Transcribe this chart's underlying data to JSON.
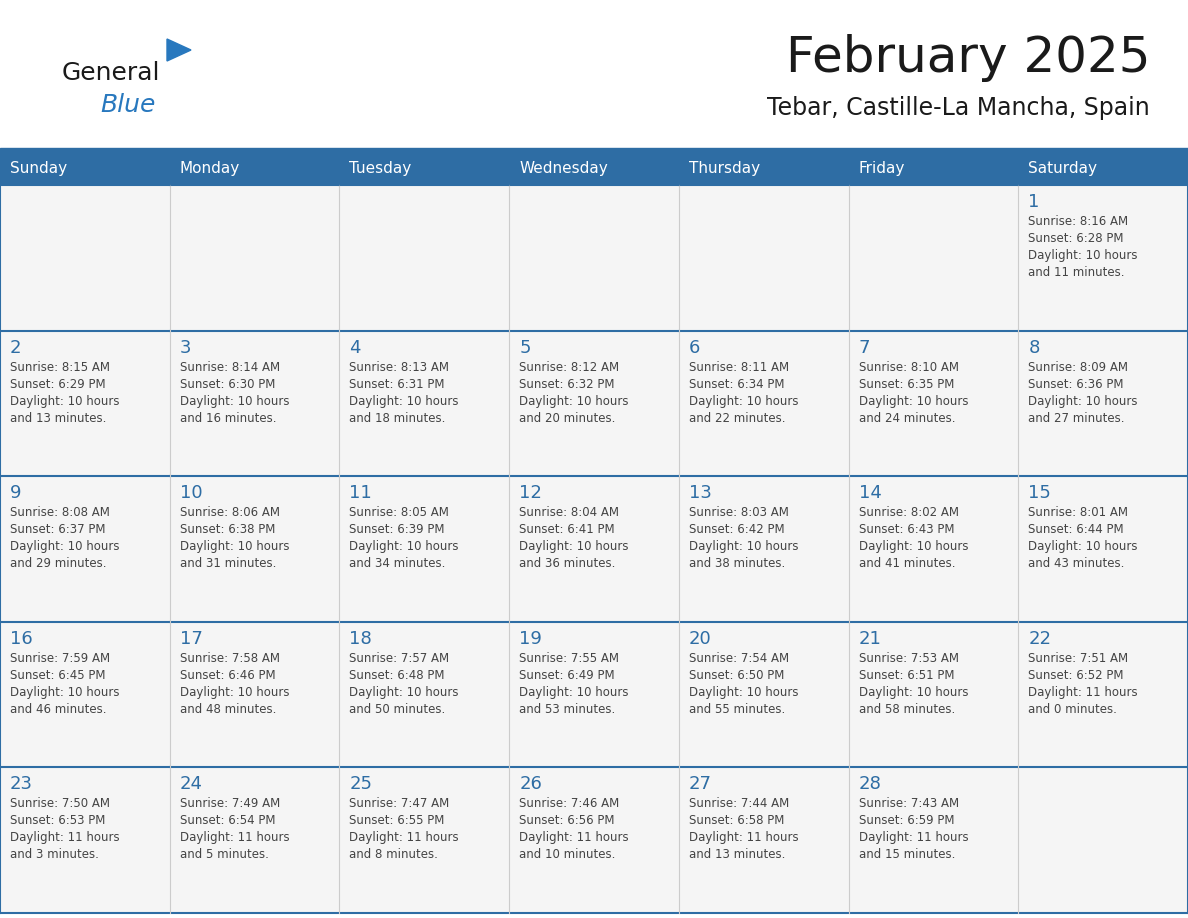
{
  "title": "February 2025",
  "subtitle": "Tebar, Castille-La Mancha, Spain",
  "days_of_week": [
    "Sunday",
    "Monday",
    "Tuesday",
    "Wednesday",
    "Thursday",
    "Friday",
    "Saturday"
  ],
  "header_bg": "#2E6DA4",
  "header_text": "#FFFFFF",
  "cell_bg": "#F5F5F5",
  "line_color": "#2E6DA4",
  "day_number_color": "#2E6DA4",
  "cell_text_color": "#444444",
  "title_color": "#1a1a1a",
  "logo_black": "#1a1a1a",
  "logo_blue": "#2878BE",
  "calendar": [
    [
      null,
      null,
      null,
      null,
      null,
      null,
      {
        "day": "1",
        "sunrise": "8:16 AM",
        "sunset": "6:28 PM",
        "daylight": "10 hours",
        "daylight2": "and 11 minutes."
      }
    ],
    [
      {
        "day": "2",
        "sunrise": "8:15 AM",
        "sunset": "6:29 PM",
        "daylight": "10 hours",
        "daylight2": "and 13 minutes."
      },
      {
        "day": "3",
        "sunrise": "8:14 AM",
        "sunset": "6:30 PM",
        "daylight": "10 hours",
        "daylight2": "and 16 minutes."
      },
      {
        "day": "4",
        "sunrise": "8:13 AM",
        "sunset": "6:31 PM",
        "daylight": "10 hours",
        "daylight2": "and 18 minutes."
      },
      {
        "day": "5",
        "sunrise": "8:12 AM",
        "sunset": "6:32 PM",
        "daylight": "10 hours",
        "daylight2": "and 20 minutes."
      },
      {
        "day": "6",
        "sunrise": "8:11 AM",
        "sunset": "6:34 PM",
        "daylight": "10 hours",
        "daylight2": "and 22 minutes."
      },
      {
        "day": "7",
        "sunrise": "8:10 AM",
        "sunset": "6:35 PM",
        "daylight": "10 hours",
        "daylight2": "and 24 minutes."
      },
      {
        "day": "8",
        "sunrise": "8:09 AM",
        "sunset": "6:36 PM",
        "daylight": "10 hours",
        "daylight2": "and 27 minutes."
      }
    ],
    [
      {
        "day": "9",
        "sunrise": "8:08 AM",
        "sunset": "6:37 PM",
        "daylight": "10 hours",
        "daylight2": "and 29 minutes."
      },
      {
        "day": "10",
        "sunrise": "8:06 AM",
        "sunset": "6:38 PM",
        "daylight": "10 hours",
        "daylight2": "and 31 minutes."
      },
      {
        "day": "11",
        "sunrise": "8:05 AM",
        "sunset": "6:39 PM",
        "daylight": "10 hours",
        "daylight2": "and 34 minutes."
      },
      {
        "day": "12",
        "sunrise": "8:04 AM",
        "sunset": "6:41 PM",
        "daylight": "10 hours",
        "daylight2": "and 36 minutes."
      },
      {
        "day": "13",
        "sunrise": "8:03 AM",
        "sunset": "6:42 PM",
        "daylight": "10 hours",
        "daylight2": "and 38 minutes."
      },
      {
        "day": "14",
        "sunrise": "8:02 AM",
        "sunset": "6:43 PM",
        "daylight": "10 hours",
        "daylight2": "and 41 minutes."
      },
      {
        "day": "15",
        "sunrise": "8:01 AM",
        "sunset": "6:44 PM",
        "daylight": "10 hours",
        "daylight2": "and 43 minutes."
      }
    ],
    [
      {
        "day": "16",
        "sunrise": "7:59 AM",
        "sunset": "6:45 PM",
        "daylight": "10 hours",
        "daylight2": "and 46 minutes."
      },
      {
        "day": "17",
        "sunrise": "7:58 AM",
        "sunset": "6:46 PM",
        "daylight": "10 hours",
        "daylight2": "and 48 minutes."
      },
      {
        "day": "18",
        "sunrise": "7:57 AM",
        "sunset": "6:48 PM",
        "daylight": "10 hours",
        "daylight2": "and 50 minutes."
      },
      {
        "day": "19",
        "sunrise": "7:55 AM",
        "sunset": "6:49 PM",
        "daylight": "10 hours",
        "daylight2": "and 53 minutes."
      },
      {
        "day": "20",
        "sunrise": "7:54 AM",
        "sunset": "6:50 PM",
        "daylight": "10 hours",
        "daylight2": "and 55 minutes."
      },
      {
        "day": "21",
        "sunrise": "7:53 AM",
        "sunset": "6:51 PM",
        "daylight": "10 hours",
        "daylight2": "and 58 minutes."
      },
      {
        "day": "22",
        "sunrise": "7:51 AM",
        "sunset": "6:52 PM",
        "daylight": "11 hours",
        "daylight2": "and 0 minutes."
      }
    ],
    [
      {
        "day": "23",
        "sunrise": "7:50 AM",
        "sunset": "6:53 PM",
        "daylight": "11 hours",
        "daylight2": "and 3 minutes."
      },
      {
        "day": "24",
        "sunrise": "7:49 AM",
        "sunset": "6:54 PM",
        "daylight": "11 hours",
        "daylight2": "and 5 minutes."
      },
      {
        "day": "25",
        "sunrise": "7:47 AM",
        "sunset": "6:55 PM",
        "daylight": "11 hours",
        "daylight2": "and 8 minutes."
      },
      {
        "day": "26",
        "sunrise": "7:46 AM",
        "sunset": "6:56 PM",
        "daylight": "11 hours",
        "daylight2": "and 10 minutes."
      },
      {
        "day": "27",
        "sunrise": "7:44 AM",
        "sunset": "6:58 PM",
        "daylight": "11 hours",
        "daylight2": "and 13 minutes."
      },
      {
        "day": "28",
        "sunrise": "7:43 AM",
        "sunset": "6:59 PM",
        "daylight": "11 hours",
        "daylight2": "and 15 minutes."
      },
      null
    ]
  ]
}
